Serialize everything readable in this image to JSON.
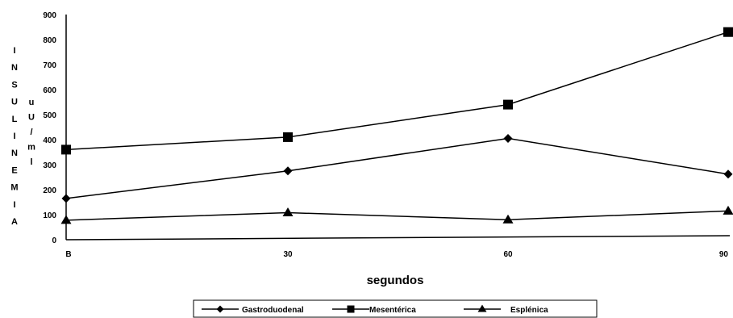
{
  "chart_data": {
    "type": "line",
    "x": [
      "B",
      "30",
      "60",
      "90"
    ],
    "xlabel": "segundos",
    "ylabel": "INSULINEMIA",
    "ylabel_unit": "uU/ml",
    "ylim": [
      0,
      900
    ],
    "yticks": [
      "0",
      "100",
      "200",
      "300",
      "400",
      "500",
      "600",
      "700",
      "800",
      "900"
    ],
    "grid": false,
    "legend_position": "bottom",
    "series": [
      {
        "name": "Gastroduodenal",
        "marker": "diamond",
        "values": [
          165,
          275,
          405,
          262
        ]
      },
      {
        "name": "Mesentérica",
        "marker": "square",
        "values": [
          360,
          410,
          540,
          830
        ]
      },
      {
        "name": "Esplénica",
        "marker": "triangle",
        "values": [
          78,
          108,
          80,
          115
        ]
      }
    ]
  }
}
